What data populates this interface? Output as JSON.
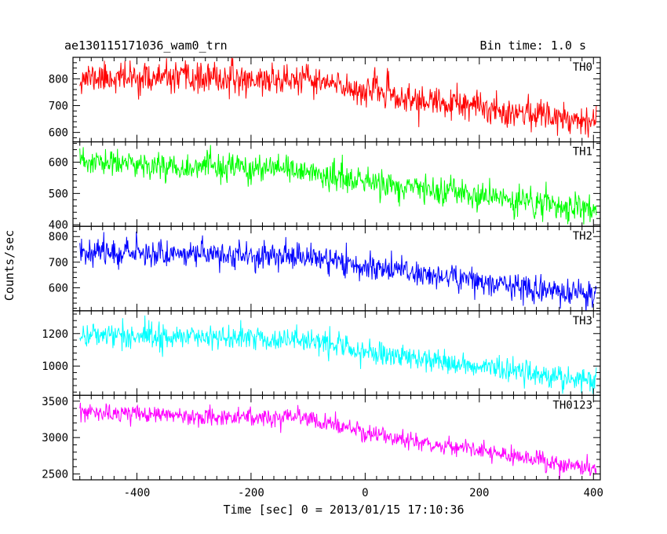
{
  "chart_data": {
    "type": "line",
    "title": "ae130115171036_wam0_trn",
    "bin_time_label": "Bin time: 1.0 s",
    "xlabel": "Time [sec] 0 = 2013/01/15 17:10:36",
    "ylabel": "Counts/sec",
    "xlim": [
      -512,
      412
    ],
    "xticks": [
      -400,
      -200,
      0,
      200,
      400
    ],
    "x_sample": {
      "start": -500,
      "end": 405,
      "step": 1
    },
    "grid": false,
    "series": [
      {
        "name": "TH0",
        "color": "#ff0000",
        "ylim": [
          565,
          880
        ],
        "yticks": [
          600,
          700,
          800
        ],
        "trend": {
          "x": [
            -500,
            -100,
            0,
            20,
            60,
            405
          ],
          "y": [
            805,
            795,
            755,
            760,
            725,
            645
          ]
        },
        "noise_sd": 28,
        "seed": 11
      },
      {
        "name": "TH1",
        "color": "#00ff00",
        "ylim": [
          395,
          665
        ],
        "yticks": [
          400,
          500,
          600
        ],
        "trend": {
          "x": [
            -500,
            -100,
            0,
            405
          ],
          "y": [
            600,
            570,
            535,
            445
          ]
        },
        "noise_sd": 22,
        "seed": 23
      },
      {
        "name": "TH2",
        "color": "#0000ff",
        "ylim": [
          510,
          840
        ],
        "yticks": [
          600,
          700,
          800
        ],
        "trend": {
          "x": [
            -500,
            -100,
            0,
            405
          ],
          "y": [
            745,
            720,
            685,
            565
          ]
        },
        "noise_sd": 26,
        "seed": 37
      },
      {
        "name": "TH3",
        "color": "#00ffff",
        "ylim": [
          820,
          1340
        ],
        "yticks": [
          1000,
          1200
        ],
        "trend": {
          "x": [
            -500,
            -100,
            0,
            405
          ],
          "y": [
            1195,
            1165,
            1085,
            910
          ]
        },
        "noise_sd": 38,
        "seed": 41
      },
      {
        "name": "TH0123",
        "color": "#ff00ff",
        "ylim": [
          2420,
          3580
        ],
        "yticks": [
          2500,
          3000,
          3500
        ],
        "trend": {
          "x": [
            -500,
            -100,
            0,
            405
          ],
          "y": [
            3340,
            3260,
            3060,
            2560
          ]
        },
        "noise_sd": 60,
        "seed": 53
      }
    ]
  }
}
